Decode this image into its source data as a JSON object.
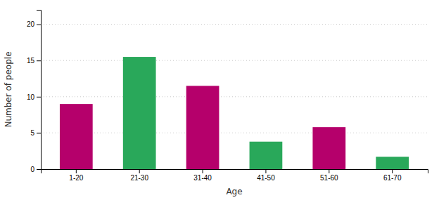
{
  "chart_data": {
    "type": "bar",
    "categories": [
      "1-20",
      "21-30",
      "31-40",
      "41-50",
      "51-60",
      "61-70"
    ],
    "values": [
      9,
      15.5,
      11.5,
      3.8,
      5.8,
      1.7
    ],
    "colors": [
      "#b5006b",
      "#29a85a",
      "#b5006b",
      "#29a85a",
      "#b5006b",
      "#29a85a"
    ],
    "xlabel": "Age",
    "ylabel": "Number of people",
    "ylim": [
      0,
      22
    ],
    "yticks": [
      0,
      5,
      10,
      15,
      20
    ],
    "grid": true
  }
}
